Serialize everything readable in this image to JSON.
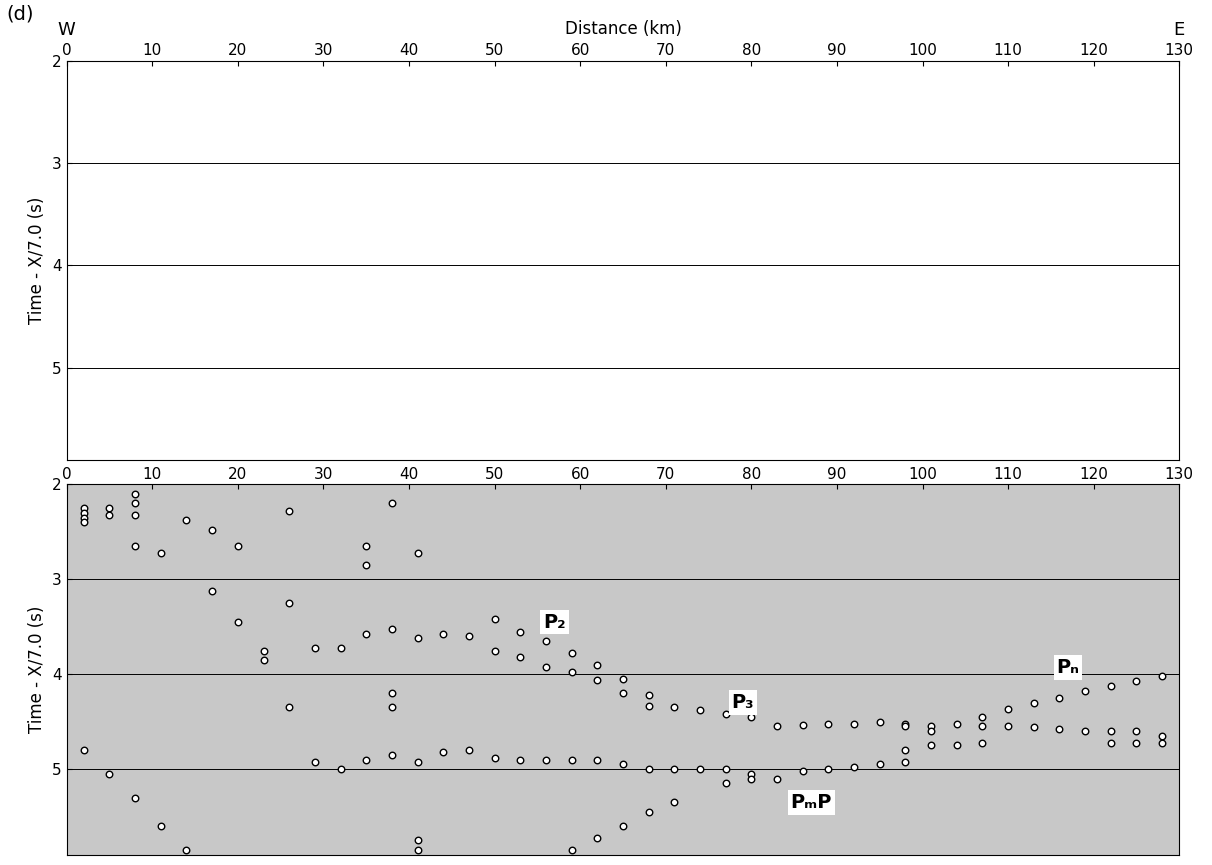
{
  "chart_data": [
    {
      "type": "scatter",
      "panel_label": "(d)",
      "side_labels": [
        "W",
        "E"
      ],
      "xlabel": "Distance (km)",
      "ylabel": "Time - X/7.0 (s)",
      "xlim": [
        0,
        130
      ],
      "xticks": [
        0,
        10,
        20,
        30,
        40,
        50,
        60,
        70,
        80,
        90,
        100,
        110,
        120,
        130
      ],
      "ylim": [
        5.9,
        2
      ],
      "yticks": [
        2,
        3,
        4,
        5
      ],
      "grid": true,
      "x": [],
      "y": []
    },
    {
      "type": "scatter",
      "ylabel": "Time - X/7.0 (s)",
      "xlim": [
        0,
        130
      ],
      "xticks": [
        0,
        10,
        20,
        30,
        40,
        50,
        60,
        70,
        80,
        90,
        100,
        110,
        120,
        130
      ],
      "ylim": [
        5.9,
        2
      ],
      "yticks": [
        2,
        3,
        4,
        5
      ],
      "grid": true,
      "marker": "o",
      "annotations": [
        {
          "text": "P₂",
          "x": 57,
          "y": 3.45
        },
        {
          "text": "P₃",
          "x": 79,
          "y": 4.3
        },
        {
          "text": "Pₙ",
          "x": 117,
          "y": 3.93
        },
        {
          "text": "PₘP",
          "x": 87,
          "y": 5.35
        }
      ],
      "x": [
        2,
        2,
        2,
        2,
        5,
        5,
        8,
        8,
        8,
        8,
        11,
        14,
        17,
        17,
        20,
        20,
        23,
        23,
        26,
        26,
        26,
        29,
        32,
        35,
        35,
        35,
        38,
        38,
        38,
        38,
        41,
        41,
        44,
        47,
        50,
        50,
        53,
        53,
        56,
        56,
        59,
        59,
        62,
        62,
        65,
        65,
        68,
        68,
        71,
        74,
        77,
        80,
        83,
        86,
        89,
        92,
        95,
        98,
        98,
        101,
        101,
        104,
        107,
        107,
        110,
        110,
        113,
        113,
        116,
        116,
        119,
        119,
        122,
        122,
        122,
        125,
        125,
        125,
        128,
        128,
        128,
        2,
        5,
        8,
        11,
        14,
        29,
        32,
        35,
        38,
        41,
        41,
        41,
        44,
        47,
        50,
        53,
        56,
        59,
        59,
        62,
        62,
        65,
        65,
        68,
        68,
        71,
        71,
        74,
        77,
        77,
        80,
        80,
        83,
        86,
        89,
        92,
        95,
        98,
        98,
        101,
        104,
        107
      ],
      "y": [
        2.25,
        2.3,
        2.35,
        2.4,
        2.25,
        2.32,
        2.1,
        2.2,
        2.32,
        2.65,
        2.72,
        2.38,
        2.48,
        3.12,
        2.65,
        3.45,
        3.75,
        3.85,
        2.28,
        3.25,
        4.35,
        3.72,
        3.72,
        2.65,
        2.85,
        3.58,
        2.2,
        3.52,
        4.2,
        4.35,
        2.72,
        3.62,
        3.58,
        3.6,
        3.42,
        3.75,
        3.55,
        3.82,
        3.65,
        3.92,
        3.78,
        3.98,
        3.9,
        4.06,
        4.05,
        4.2,
        4.22,
        4.33,
        4.35,
        4.38,
        4.42,
        4.45,
        4.55,
        4.53,
        4.52,
        4.52,
        4.5,
        4.52,
        4.55,
        4.55,
        4.6,
        4.52,
        4.45,
        4.55,
        4.37,
        4.55,
        4.3,
        4.56,
        4.25,
        4.58,
        4.18,
        4.6,
        4.12,
        4.6,
        4.72,
        4.07,
        4.6,
        4.72,
        4.02,
        4.65,
        4.72,
        4.8,
        5.05,
        5.3,
        5.6,
        5.85,
        4.92,
        5.0,
        4.9,
        4.85,
        4.92,
        5.75,
        5.85,
        4.82,
        4.8,
        4.88,
        4.9,
        4.9,
        4.9,
        5.85,
        4.9,
        5.72,
        4.95,
        5.6,
        5.0,
        5.45,
        5.0,
        5.35,
        5.0,
        5.0,
        5.15,
        5.05,
        5.1,
        5.1,
        5.02,
        5.0,
        4.98,
        4.95,
        4.92,
        4.8,
        4.75,
        4.75,
        4.72
      ]
    }
  ]
}
